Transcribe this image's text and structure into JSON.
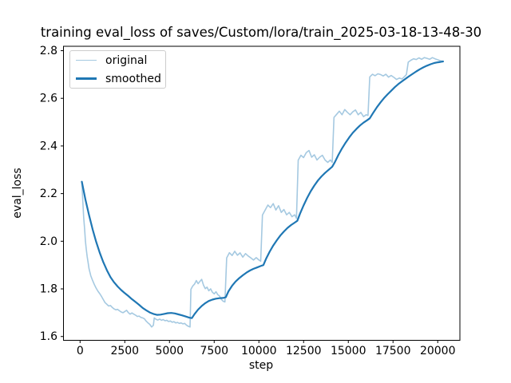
{
  "figure": {
    "background_color": "#ffffff",
    "spine_color": "#000000",
    "text_color": "#000000"
  },
  "chart_data": {
    "type": "line",
    "title": "training eval_loss of saves/Custom/lora/train_2025-03-18-13-48-30",
    "xlabel": "step",
    "ylabel": "eval_loss",
    "grid": false,
    "xlim": [
      -928,
      21240
    ],
    "ylim": [
      1.584,
      2.8185
    ],
    "x_ticks": [
      0,
      2500,
      5000,
      7500,
      10000,
      12500,
      15000,
      17500,
      20000
    ],
    "x_tick_labels": [
      "0",
      "2500",
      "5000",
      "7500",
      "10000",
      "12500",
      "15000",
      "17500",
      "20000"
    ],
    "y_ticks": [
      1.6,
      1.8,
      2.0,
      2.2,
      2.4,
      2.6,
      2.8
    ],
    "y_tick_labels": [
      "1.6",
      "1.8",
      "2.0",
      "2.2",
      "2.4",
      "2.6",
      "2.8"
    ],
    "legend": {
      "position": "upper left",
      "entries": [
        {
          "label": "original",
          "color": "#a5c9e1",
          "linewidth": 1.6
        },
        {
          "label": "smoothed",
          "color": "#1f77b4",
          "linewidth": 2.2
        }
      ]
    },
    "series": [
      {
        "name": "original",
        "color": "#a5c9e1",
        "linewidth": 1.6,
        "points": [
          [
            100,
            2.25
          ],
          [
            150,
            2.175
          ],
          [
            200,
            2.1
          ],
          [
            250,
            2.055
          ],
          [
            300,
            2.0
          ],
          [
            350,
            1.965
          ],
          [
            400,
            1.935
          ],
          [
            450,
            1.91
          ],
          [
            500,
            1.885
          ],
          [
            600,
            1.855
          ],
          [
            700,
            1.835
          ],
          [
            800,
            1.818
          ],
          [
            900,
            1.803
          ],
          [
            1000,
            1.79
          ],
          [
            1100,
            1.78
          ],
          [
            1200,
            1.768
          ],
          [
            1300,
            1.755
          ],
          [
            1400,
            1.742
          ],
          [
            1500,
            1.735
          ],
          [
            1600,
            1.728
          ],
          [
            1700,
            1.73
          ],
          [
            1800,
            1.722
          ],
          [
            1900,
            1.716
          ],
          [
            2000,
            1.712
          ],
          [
            2100,
            1.714
          ],
          [
            2200,
            1.708
          ],
          [
            2300,
            1.703
          ],
          [
            2400,
            1.7
          ],
          [
            2500,
            1.705
          ],
          [
            2600,
            1.71
          ],
          [
            2700,
            1.7
          ],
          [
            2800,
            1.694
          ],
          [
            2900,
            1.699
          ],
          [
            3000,
            1.694
          ],
          [
            3100,
            1.69
          ],
          [
            3200,
            1.684
          ],
          [
            3300,
            1.686
          ],
          [
            3400,
            1.68
          ],
          [
            3500,
            1.678
          ],
          [
            3600,
            1.674
          ],
          [
            3700,
            1.664
          ],
          [
            3800,
            1.657
          ],
          [
            3900,
            1.651
          ],
          [
            4000,
            1.64
          ],
          [
            4100,
            1.647
          ],
          [
            4150,
            1.678
          ],
          [
            4250,
            1.672
          ],
          [
            4350,
            1.669
          ],
          [
            4450,
            1.673
          ],
          [
            4550,
            1.668
          ],
          [
            4650,
            1.671
          ],
          [
            4750,
            1.666
          ],
          [
            4850,
            1.668
          ],
          [
            4950,
            1.663
          ],
          [
            5050,
            1.665
          ],
          [
            5150,
            1.66
          ],
          [
            5250,
            1.662
          ],
          [
            5350,
            1.657
          ],
          [
            5450,
            1.659
          ],
          [
            5550,
            1.655
          ],
          [
            5650,
            1.657
          ],
          [
            5750,
            1.653
          ],
          [
            5850,
            1.655
          ],
          [
            5950,
            1.648
          ],
          [
            6050,
            1.643
          ],
          [
            6150,
            1.64
          ],
          [
            6200,
            1.798
          ],
          [
            6300,
            1.812
          ],
          [
            6400,
            1.82
          ],
          [
            6500,
            1.835
          ],
          [
            6600,
            1.822
          ],
          [
            6700,
            1.831
          ],
          [
            6800,
            1.84
          ],
          [
            6900,
            1.816
          ],
          [
            7000,
            1.801
          ],
          [
            7100,
            1.807
          ],
          [
            7200,
            1.792
          ],
          [
            7300,
            1.8
          ],
          [
            7400,
            1.786
          ],
          [
            7500,
            1.779
          ],
          [
            7600,
            1.788
          ],
          [
            7700,
            1.776
          ],
          [
            7800,
            1.77
          ],
          [
            7900,
            1.756
          ],
          [
            8000,
            1.748
          ],
          [
            8100,
            1.745
          ],
          [
            8200,
            1.93
          ],
          [
            8350,
            1.952
          ],
          [
            8500,
            1.94
          ],
          [
            8650,
            1.958
          ],
          [
            8800,
            1.941
          ],
          [
            8950,
            1.951
          ],
          [
            9100,
            1.933
          ],
          [
            9250,
            1.948
          ],
          [
            9400,
            1.938
          ],
          [
            9550,
            1.93
          ],
          [
            9700,
            1.921
          ],
          [
            9850,
            1.931
          ],
          [
            10000,
            1.921
          ],
          [
            10100,
            1.916
          ],
          [
            10200,
            2.11
          ],
          [
            10350,
            2.131
          ],
          [
            10500,
            2.152
          ],
          [
            10650,
            2.141
          ],
          [
            10800,
            2.158
          ],
          [
            10950,
            2.131
          ],
          [
            11100,
            2.149
          ],
          [
            11250,
            2.121
          ],
          [
            11400,
            2.133
          ],
          [
            11550,
            2.111
          ],
          [
            11700,
            2.121
          ],
          [
            11850,
            2.103
          ],
          [
            12000,
            2.111
          ],
          [
            12100,
            2.096
          ],
          [
            12200,
            2.34
          ],
          [
            12350,
            2.361
          ],
          [
            12500,
            2.351
          ],
          [
            12650,
            2.372
          ],
          [
            12800,
            2.381
          ],
          [
            12950,
            2.353
          ],
          [
            13100,
            2.363
          ],
          [
            13250,
            2.341
          ],
          [
            13400,
            2.353
          ],
          [
            13550,
            2.361
          ],
          [
            13700,
            2.341
          ],
          [
            13850,
            2.331
          ],
          [
            14000,
            2.341
          ],
          [
            14100,
            2.331
          ],
          [
            14200,
            2.52
          ],
          [
            14350,
            2.533
          ],
          [
            14500,
            2.546
          ],
          [
            14650,
            2.531
          ],
          [
            14800,
            2.553
          ],
          [
            14950,
            2.541
          ],
          [
            15100,
            2.531
          ],
          [
            15250,
            2.543
          ],
          [
            15400,
            2.551
          ],
          [
            15550,
            2.531
          ],
          [
            15700,
            2.541
          ],
          [
            15850,
            2.523
          ],
          [
            16000,
            2.531
          ],
          [
            16100,
            2.528
          ],
          [
            16200,
            2.69
          ],
          [
            16350,
            2.701
          ],
          [
            16500,
            2.695
          ],
          [
            16650,
            2.703
          ],
          [
            16800,
            2.7
          ],
          [
            16950,
            2.694
          ],
          [
            17100,
            2.701
          ],
          [
            17250,
            2.689
          ],
          [
            17400,
            2.696
          ],
          [
            17550,
            2.688
          ],
          [
            17700,
            2.679
          ],
          [
            17850,
            2.685
          ],
          [
            18000,
            2.681
          ],
          [
            18150,
            2.692
          ],
          [
            18250,
            2.7
          ],
          [
            18350,
            2.752
          ],
          [
            18500,
            2.76
          ],
          [
            18650,
            2.766
          ],
          [
            18800,
            2.763
          ],
          [
            18950,
            2.77
          ],
          [
            19100,
            2.764
          ],
          [
            19250,
            2.771
          ],
          [
            19400,
            2.768
          ],
          [
            19550,
            2.764
          ],
          [
            19700,
            2.771
          ],
          [
            19850,
            2.766
          ],
          [
            20000,
            2.762
          ],
          [
            20150,
            2.758
          ],
          [
            20300,
            2.755
          ]
        ]
      },
      {
        "name": "smoothed",
        "color": "#1f77b4",
        "linewidth": 2.2,
        "points": [
          [
            100,
            2.25
          ],
          [
            300,
            2.175
          ],
          [
            500,
            2.11
          ],
          [
            700,
            2.05
          ],
          [
            900,
            1.998
          ],
          [
            1100,
            1.952
          ],
          [
            1300,
            1.912
          ],
          [
            1500,
            1.878
          ],
          [
            1700,
            1.849
          ],
          [
            1900,
            1.828
          ],
          [
            2100,
            1.81
          ],
          [
            2300,
            1.795
          ],
          [
            2500,
            1.782
          ],
          [
            2700,
            1.77
          ],
          [
            2900,
            1.757
          ],
          [
            3100,
            1.745
          ],
          [
            3300,
            1.733
          ],
          [
            3500,
            1.72
          ],
          [
            3700,
            1.71
          ],
          [
            3900,
            1.701
          ],
          [
            4100,
            1.695
          ],
          [
            4300,
            1.691
          ],
          [
            4500,
            1.692
          ],
          [
            4700,
            1.695
          ],
          [
            4900,
            1.698
          ],
          [
            5100,
            1.699
          ],
          [
            5300,
            1.697
          ],
          [
            5500,
            1.693
          ],
          [
            5700,
            1.689
          ],
          [
            5900,
            1.684
          ],
          [
            6100,
            1.679
          ],
          [
            6250,
            1.677
          ],
          [
            6400,
            1.694
          ],
          [
            6600,
            1.713
          ],
          [
            6800,
            1.728
          ],
          [
            7000,
            1.74
          ],
          [
            7200,
            1.749
          ],
          [
            7400,
            1.755
          ],
          [
            7600,
            1.759
          ],
          [
            7800,
            1.761
          ],
          [
            8000,
            1.762
          ],
          [
            8150,
            1.765
          ],
          [
            8300,
            1.79
          ],
          [
            8500,
            1.813
          ],
          [
            8700,
            1.831
          ],
          [
            8900,
            1.845
          ],
          [
            9100,
            1.857
          ],
          [
            9300,
            1.868
          ],
          [
            9500,
            1.877
          ],
          [
            9700,
            1.884
          ],
          [
            9900,
            1.89
          ],
          [
            10100,
            1.896
          ],
          [
            10250,
            1.9
          ],
          [
            10400,
            1.926
          ],
          [
            10600,
            1.956
          ],
          [
            10800,
            1.982
          ],
          [
            11000,
            2.004
          ],
          [
            11200,
            2.024
          ],
          [
            11400,
            2.041
          ],
          [
            11600,
            2.056
          ],
          [
            11800,
            2.068
          ],
          [
            12000,
            2.078
          ],
          [
            12150,
            2.086
          ],
          [
            12300,
            2.116
          ],
          [
            12500,
            2.15
          ],
          [
            12700,
            2.182
          ],
          [
            12900,
            2.21
          ],
          [
            13100,
            2.234
          ],
          [
            13300,
            2.255
          ],
          [
            13500,
            2.272
          ],
          [
            13700,
            2.287
          ],
          [
            13900,
            2.3
          ],
          [
            14100,
            2.313
          ],
          [
            14250,
            2.332
          ],
          [
            14450,
            2.363
          ],
          [
            14650,
            2.39
          ],
          [
            14850,
            2.414
          ],
          [
            15050,
            2.436
          ],
          [
            15250,
            2.455
          ],
          [
            15450,
            2.471
          ],
          [
            15650,
            2.486
          ],
          [
            15850,
            2.498
          ],
          [
            16050,
            2.508
          ],
          [
            16200,
            2.516
          ],
          [
            16400,
            2.54
          ],
          [
            16600,
            2.563
          ],
          [
            16800,
            2.583
          ],
          [
            17000,
            2.601
          ],
          [
            17200,
            2.617
          ],
          [
            17400,
            2.632
          ],
          [
            17600,
            2.647
          ],
          [
            17800,
            2.66
          ],
          [
            18000,
            2.671
          ],
          [
            18200,
            2.682
          ],
          [
            18400,
            2.693
          ],
          [
            18600,
            2.703
          ],
          [
            18800,
            2.713
          ],
          [
            19000,
            2.722
          ],
          [
            19200,
            2.73
          ],
          [
            19400,
            2.737
          ],
          [
            19600,
            2.743
          ],
          [
            19800,
            2.748
          ],
          [
            20000,
            2.751
          ],
          [
            20150,
            2.753
          ],
          [
            20300,
            2.755
          ]
        ]
      }
    ]
  }
}
